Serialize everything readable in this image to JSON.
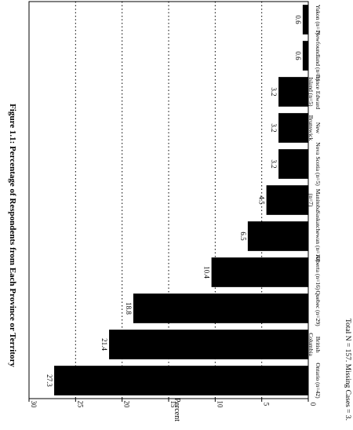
{
  "figure": {
    "title": "Figure 1.1:  Percentage of Respondents from Each Province or Territory",
    "footnote": "Total N = 157.  Missing Cases = 3."
  },
  "chart_data": {
    "type": "bar",
    "orientation": "horizontal",
    "rotated": "page rotated 90 degrees clockwise",
    "categories": [
      "Ontario (n=42)",
      "British Columbia (n=33)",
      "Quebec (n=29)",
      "Alberta (n=16)",
      "Saskatchewan (n=10)",
      "Manitoba (n=7)",
      "Nova Scotia (n=5)",
      "New Brunswick (n=5)",
      "Prince Edward Island (n=5)",
      "Newfoundland (n=1)",
      "Yukon (n=1)"
    ],
    "category_label_lines": [
      [
        "Ontario (n=42)"
      ],
      [
        "British",
        "Columbia",
        "(n=33)"
      ],
      [
        "Quebec (n=29)"
      ],
      [
        "Alberta (n=16)"
      ],
      [
        "Saskatchewan (n=10)"
      ],
      [
        "Manitoba",
        "(n=7)"
      ],
      [
        "Nova Scotia (n=5)"
      ],
      [
        "New",
        "Brunswick",
        "(n=5)"
      ],
      [
        "Prince Edward",
        "Island (n=5)"
      ],
      [
        "Newfoundland (n=1)"
      ],
      [
        "Yukon (n=1)"
      ]
    ],
    "values": [
      27.3,
      21.4,
      18.8,
      10.4,
      6.5,
      4.5,
      3.2,
      3.2,
      3.2,
      0.6,
      0.6
    ],
    "value_labels": [
      "27.3",
      "21.4",
      "18.8",
      "10.4",
      "6.5",
      "4.5",
      "3.2",
      "3.2",
      "3.2",
      "0.6",
      "0.6"
    ],
    "ylabel": "Percent",
    "ylim": [
      0,
      30
    ],
    "ticks": [
      0,
      5,
      10,
      15,
      20,
      25,
      30
    ],
    "grid": "dotted lines at 5, 10, 15, 20, 25",
    "bar_color": "#000000",
    "legend": "none"
  }
}
